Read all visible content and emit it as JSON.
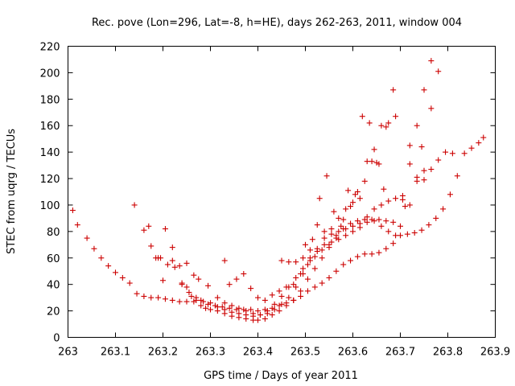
{
  "chart_data": {
    "type": "scatter",
    "title": "Rec. pove (Lon=296, Lat=-8, h=HE), days 262-263, 2011, window 004",
    "xlabel": "GPS time / Days of year 2011",
    "ylabel": "STEC from uqrg / TECUs",
    "xlim": [
      263.0,
      263.9
    ],
    "ylim": [
      0,
      220
    ],
    "xticks": [
      "263",
      "263.1",
      "263.2",
      "263.3",
      "263.4",
      "263.5",
      "263.6",
      "263.7",
      "263.8",
      "263.9"
    ],
    "yticks": [
      "0",
      "20",
      "40",
      "60",
      "80",
      "100",
      "120",
      "140",
      "160",
      "180",
      "200",
      "220"
    ],
    "grid": false,
    "legend": "none",
    "marker": "+",
    "marker_color": "#cc0000",
    "series": [
      {
        "points": [
          [
            263.01,
            96
          ],
          [
            263.02,
            85
          ],
          [
            263.04,
            75
          ],
          [
            263.055,
            67
          ],
          [
            263.07,
            60
          ],
          [
            263.085,
            54
          ],
          [
            263.1,
            49
          ],
          [
            263.115,
            45
          ],
          [
            263.13,
            41
          ],
          [
            263.145,
            33
          ],
          [
            263.16,
            31
          ],
          [
            263.175,
            30
          ],
          [
            263.19,
            30
          ],
          [
            263.205,
            29
          ],
          [
            263.22,
            28
          ],
          [
            263.235,
            27
          ],
          [
            263.25,
            27
          ],
          [
            263.265,
            27
          ],
          [
            263.28,
            28
          ],
          [
            263.295,
            25
          ],
          [
            263.31,
            24
          ],
          [
            263.325,
            23
          ],
          [
            263.34,
            22
          ],
          [
            263.355,
            21
          ],
          [
            263.37,
            21
          ],
          [
            263.385,
            21
          ],
          [
            263.4,
            20
          ],
          [
            263.415,
            21
          ],
          [
            263.43,
            22
          ],
          [
            263.445,
            24
          ],
          [
            263.46,
            26
          ],
          [
            263.475,
            28
          ],
          [
            263.49,
            31
          ],
          [
            263.505,
            35
          ],
          [
            263.52,
            38
          ],
          [
            263.535,
            41
          ],
          [
            263.55,
            45
          ],
          [
            263.565,
            50
          ],
          [
            263.58,
            55
          ],
          [
            263.595,
            58
          ],
          [
            263.61,
            61
          ],
          [
            263.625,
            63
          ],
          [
            263.64,
            63
          ],
          [
            263.655,
            64
          ],
          [
            263.67,
            67
          ],
          [
            263.685,
            71
          ],
          [
            263.7,
            77
          ],
          [
            263.715,
            78
          ],
          [
            263.73,
            79
          ],
          [
            263.745,
            81
          ],
          [
            263.76,
            85
          ],
          [
            263.775,
            90
          ],
          [
            263.79,
            97
          ],
          [
            263.805,
            108
          ],
          [
            263.82,
            122
          ],
          [
            263.835,
            139
          ],
          [
            263.85,
            143
          ],
          [
            263.865,
            147
          ],
          [
            263.875,
            151
          ]
        ]
      },
      {
        "points": [
          [
            263.16,
            81
          ],
          [
            263.17,
            84
          ],
          [
            263.175,
            69
          ],
          [
            263.185,
            60
          ],
          [
            263.19,
            60
          ],
          [
            263.195,
            60
          ],
          [
            263.2,
            43
          ],
          [
            263.21,
            55
          ],
          [
            263.22,
            58
          ],
          [
            263.225,
            53
          ],
          [
            263.235,
            54
          ],
          [
            263.24,
            41
          ],
          [
            263.25,
            38
          ],
          [
            263.26,
            31
          ],
          [
            263.27,
            28
          ],
          [
            263.28,
            24
          ],
          [
            263.29,
            22
          ],
          [
            263.3,
            21
          ],
          [
            263.315,
            20
          ],
          [
            263.33,
            18
          ],
          [
            263.345,
            16
          ],
          [
            263.36,
            15
          ],
          [
            263.375,
            14
          ],
          [
            263.39,
            13
          ],
          [
            263.4,
            13
          ],
          [
            263.415,
            14
          ],
          [
            263.43,
            17
          ],
          [
            263.445,
            20
          ],
          [
            263.46,
            24
          ],
          [
            263.475,
            28
          ],
          [
            263.49,
            35
          ],
          [
            263.505,
            44
          ],
          [
            263.52,
            52
          ],
          [
            263.535,
            60
          ],
          [
            263.55,
            68
          ],
          [
            263.565,
            75
          ],
          [
            263.58,
            82
          ],
          [
            263.595,
            86
          ],
          [
            263.61,
            88
          ],
          [
            263.625,
            89
          ],
          [
            263.64,
            89
          ],
          [
            263.655,
            89
          ],
          [
            263.67,
            88
          ],
          [
            263.685,
            87
          ],
          [
            263.7,
            84
          ],
          [
            263.71,
            99
          ]
        ]
      },
      {
        "points": [
          [
            263.14,
            100
          ],
          [
            263.205,
            82
          ],
          [
            263.22,
            68
          ],
          [
            263.25,
            56
          ],
          [
            263.265,
            47
          ],
          [
            263.275,
            44
          ],
          [
            263.295,
            39
          ],
          [
            263.315,
            30
          ],
          [
            263.33,
            26
          ],
          [
            263.345,
            24
          ],
          [
            263.36,
            22
          ],
          [
            263.375,
            20
          ],
          [
            263.39,
            18
          ],
          [
            263.405,
            17
          ],
          [
            263.42,
            18
          ],
          [
            263.435,
            21
          ],
          [
            263.45,
            25
          ],
          [
            263.465,
            30
          ],
          [
            263.48,
            38
          ],
          [
            263.495,
            48
          ],
          [
            263.51,
            58
          ],
          [
            263.525,
            67
          ],
          [
            263.54,
            75
          ],
          [
            263.555,
            78
          ],
          [
            263.57,
            80
          ],
          [
            263.585,
            82
          ],
          [
            263.6,
            84
          ],
          [
            263.615,
            86
          ],
          [
            263.63,
            87
          ],
          [
            263.645,
            88
          ],
          [
            263.66,
            84
          ],
          [
            263.675,
            80
          ],
          [
            263.69,
            77
          ],
          [
            263.705,
            104
          ],
          [
            263.72,
            100
          ],
          [
            263.735,
            118
          ],
          [
            263.75,
            126
          ],
          [
            263.765,
            127
          ],
          [
            263.78,
            134
          ],
          [
            263.795,
            140
          ],
          [
            263.81,
            139
          ]
        ]
      },
      {
        "points": [
          [
            263.24,
            40
          ],
          [
            263.255,
            34
          ],
          [
            263.27,
            30
          ],
          [
            263.285,
            27
          ],
          [
            263.3,
            26
          ],
          [
            263.315,
            23
          ],
          [
            263.33,
            21
          ],
          [
            263.345,
            19
          ],
          [
            263.36,
            18
          ],
          [
            263.375,
            17
          ],
          [
            263.39,
            16
          ],
          [
            263.405,
            17
          ],
          [
            263.42,
            20
          ],
          [
            263.435,
            25
          ],
          [
            263.45,
            31
          ],
          [
            263.465,
            38
          ],
          [
            263.48,
            45
          ],
          [
            263.495,
            52
          ],
          [
            263.51,
            60
          ],
          [
            263.525,
            65
          ],
          [
            263.54,
            70
          ],
          [
            263.555,
            72
          ],
          [
            263.57,
            74
          ],
          [
            263.585,
            77
          ],
          [
            263.6,
            80
          ],
          [
            263.615,
            83
          ],
          [
            263.63,
            91
          ],
          [
            263.645,
            97
          ],
          [
            263.66,
            100
          ],
          [
            263.675,
            103
          ],
          [
            263.69,
            105
          ],
          [
            263.705,
            107
          ],
          [
            263.72,
            131
          ],
          [
            263.735,
            121
          ],
          [
            263.75,
            119
          ],
          [
            263.765,
            173
          ],
          [
            263.78,
            201
          ]
        ]
      },
      {
        "points": [
          [
            263.33,
            58
          ],
          [
            263.34,
            40
          ],
          [
            263.355,
            44
          ],
          [
            263.37,
            48
          ],
          [
            263.385,
            37
          ],
          [
            263.4,
            30
          ],
          [
            263.415,
            28
          ],
          [
            263.43,
            32
          ],
          [
            263.445,
            35
          ],
          [
            263.46,
            38
          ],
          [
            263.475,
            40
          ],
          [
            263.49,
            48
          ],
          [
            263.505,
            55
          ],
          [
            263.52,
            61
          ],
          [
            263.535,
            66
          ],
          [
            263.55,
            70
          ],
          [
            263.565,
            77
          ],
          [
            263.58,
            89
          ],
          [
            263.595,
            99
          ],
          [
            263.61,
            110
          ],
          [
            263.625,
            118
          ],
          [
            263.64,
            133
          ],
          [
            263.655,
            131
          ],
          [
            263.67,
            159
          ],
          [
            263.685,
            187
          ],
          [
            263.735,
            160
          ],
          [
            263.75,
            187
          ],
          [
            263.765,
            209
          ]
        ]
      },
      {
        "points": [
          [
            263.45,
            58
          ],
          [
            263.465,
            57
          ],
          [
            263.48,
            57
          ],
          [
            263.495,
            60
          ],
          [
            263.51,
            66
          ],
          [
            263.525,
            85
          ],
          [
            263.54,
            80
          ],
          [
            263.555,
            82
          ],
          [
            263.57,
            90
          ],
          [
            263.585,
            97
          ],
          [
            263.6,
            102
          ],
          [
            263.615,
            105
          ],
          [
            263.63,
            133
          ],
          [
            263.645,
            142
          ],
          [
            263.66,
            160
          ],
          [
            263.675,
            162
          ],
          [
            263.69,
            167
          ],
          [
            263.72,
            145
          ],
          [
            263.745,
            144
          ]
        ]
      },
      {
        "points": [
          [
            263.5,
            70
          ],
          [
            263.515,
            74
          ],
          [
            263.53,
            105
          ],
          [
            263.545,
            122
          ],
          [
            263.56,
            95
          ],
          [
            263.575,
            84
          ],
          [
            263.59,
            111
          ],
          [
            263.605,
            108
          ],
          [
            263.62,
            167
          ],
          [
            263.635,
            162
          ],
          [
            263.65,
            132
          ],
          [
            263.665,
            112
          ]
        ]
      }
    ]
  }
}
